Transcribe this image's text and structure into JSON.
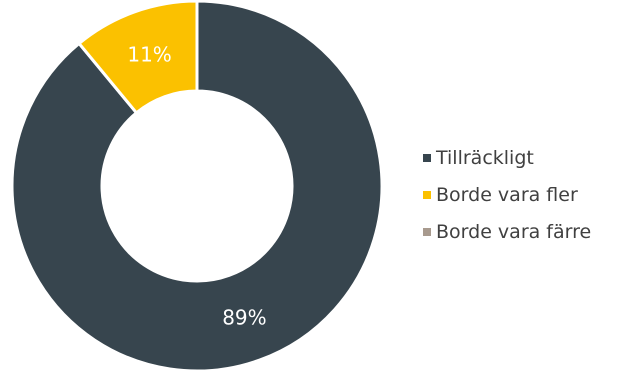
{
  "chart_data": {
    "type": "pie",
    "variant": "donut",
    "title": "",
    "slices": [
      {
        "label": "Tillräckligt",
        "value": 89,
        "display": "89%",
        "color": "#37454E",
        "label_color": "#ffffff"
      },
      {
        "label": "Borde vara fler",
        "value": 11,
        "display": "11%",
        "color": "#FBC100",
        "label_color": "#ffffff"
      },
      {
        "label": "Borde vara färre",
        "value": 0,
        "display": "",
        "color": "#A89A8E",
        "label_color": "#ffffff"
      }
    ],
    "legend_position": "right",
    "legend_text_color": "#404040"
  }
}
